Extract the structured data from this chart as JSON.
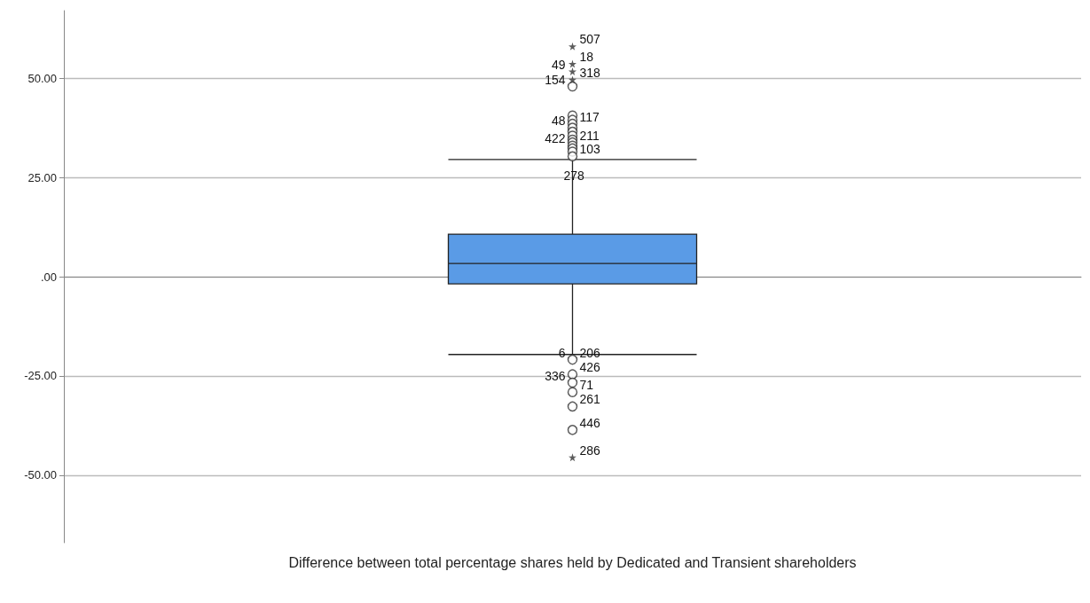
{
  "chart_data": {
    "type": "box",
    "categories": [
      "Difference between total percentage shares held by Dedicated and Transient shareholders"
    ],
    "series": [
      {
        "color": "#5a9be6",
        "boxes": [
          {
            "low": -19.6,
            "q1": -1.8,
            "median": 3.3,
            "q3": 10.7,
            "high": 29.5
          }
        ]
      },
      {
        "type": "scatter",
        "color": "#333333",
        "x": [
          "Difference between total percentage shares held by Dedicated and Transient shareholders",
          "Difference between total percentage shares held by Dedicated and Transient shareholders",
          "Difference between total percentage shares held by Dedicated and Transient shareholders",
          "Difference between total percentage shares held by Dedicated and Transient shareholders",
          "Difference between total percentage shares held by Dedicated and Transient shareholders",
          "Difference between total percentage shares held by Dedicated and Transient shareholders",
          "Difference between total percentage shares held by Dedicated and Transient shareholders",
          "Difference between total percentage shares held by Dedicated and Transient shareholders",
          "Difference between total percentage shares held by Dedicated and Transient shareholders",
          "Difference between total percentage shares held by Dedicated and Transient shareholders",
          "Difference between total percentage shares held by Dedicated and Transient shareholders",
          "Difference between total percentage shares held by Dedicated and Transient shareholders",
          "Difference between total percentage shares held by Dedicated and Transient shareholders",
          "Difference between total percentage shares held by Dedicated and Transient shareholders",
          "Difference between total percentage shares held by Dedicated and Transient shareholders",
          "Difference between total percentage shares held by Dedicated and Transient shareholders",
          "Difference between total percentage shares held by Dedicated and Transient shareholders",
          "Difference between total percentage shares held by Dedicated and Transient shareholders",
          "Difference between total percentage shares held by Dedicated and Transient shareholders"
        ],
        "values": [
          47.9,
          40.6,
          39.5,
          38.5,
          37.5,
          36.5,
          35.5,
          34.5,
          33.8,
          33,
          32.3,
          31.5,
          30.3,
          -20.9,
          -24.6,
          -26.7,
          -29.1,
          -32.7,
          -38.6
        ]
      },
      {
        "type": "scatter",
        "marker": "star",
        "color": "#333333",
        "x": [
          "Difference between total percentage shares held by Dedicated and Transient shareholders",
          "Difference between total percentage shares held by Dedicated and Transient shareholders",
          "Difference between total percentage shares held by Dedicated and Transient shareholders",
          "Difference between total percentage shares held by Dedicated and Transient shareholders",
          "Difference between total percentage shares held by Dedicated and Transient shareholders"
        ],
        "values": [
          58.0,
          53.6,
          51.7,
          49.6,
          -45.5
        ]
      }
    ],
    "ylim": [
      -67,
      67
    ],
    "yticks": [
      {
        "value": -50,
        "label": "-50.00"
      },
      {
        "value": -25,
        "label": "-25.00"
      },
      {
        "value": 0,
        "label": ".00"
      },
      {
        "value": 25,
        "label": "25.00"
      },
      {
        "value": 50,
        "label": "50.00"
      }
    ],
    "grid": "y",
    "marker": "circle",
    "annotations": [
      {
        "text": "507",
        "x": "Difference between total percentage shares held by Dedicated and Transient shareholders",
        "y": 58.0
      },
      {
        "text": "18",
        "x": "Difference between total percentage shares held by Dedicated and Transient shareholders",
        "y": 53.6
      },
      {
        "text": "49",
        "x": "Difference between total percentage shares held by Dedicated and Transient shareholders",
        "y": 51.7
      },
      {
        "text": "318",
        "x": "Difference between total percentage shares held by Dedicated and Transient shareholders",
        "y": 49.6
      },
      {
        "text": "154",
        "x": "Difference between total percentage shares held by Dedicated and Transient shareholders",
        "y": 47.9
      },
      {
        "text": "117",
        "x": "Difference between total percentage shares held by Dedicated and Transient shareholders",
        "y": 38.5
      },
      {
        "text": "48",
        "x": "Difference between total percentage shares held by Dedicated and Transient shareholders",
        "y": 37.5
      },
      {
        "text": "211",
        "x": "Difference between total percentage shares held by Dedicated and Transient shareholders",
        "y": 33.8
      },
      {
        "text": "422",
        "x": "Difference between total percentage shares held by Dedicated and Transient shareholders",
        "y": 33
      },
      {
        "text": "103",
        "x": "Difference between total percentage shares held by Dedicated and Transient shareholders",
        "y": 30.3
      },
      {
        "text": "278",
        "x": "Difference between total percentage shares held by Dedicated and Transient shareholders",
        "y": 30.3
      },
      {
        "text": "206",
        "x": "Difference between total percentage shares held by Dedicated and Transient shareholders",
        "y": -20.9
      },
      {
        "text": "6",
        "x": "Difference between total percentage shares held by Dedicated and Transient shareholders",
        "y": -20.9
      },
      {
        "text": "426",
        "x": "Difference between total percentage shares held by Dedicated and Transient shareholders",
        "y": -24.6
      },
      {
        "text": "336",
        "x": "Difference between total percentage shares held by Dedicated and Transient shareholders",
        "y": -26.7
      },
      {
        "text": "71",
        "x": "Difference between total percentage shares held by Dedicated and Transient shareholders",
        "y": -29.1
      },
      {
        "text": "261",
        "x": "Difference between total percentage shares held by Dedicated and Transient shareholders",
        "y": -32.7
      },
      {
        "text": "446",
        "x": "Difference between total percentage shares held by Dedicated and Transient shareholders",
        "y": -38.6
      },
      {
        "text": "286",
        "x": "Difference between total percentage shares held by Dedicated and Transient shareholders",
        "y": -45.5
      }
    ]
  }
}
